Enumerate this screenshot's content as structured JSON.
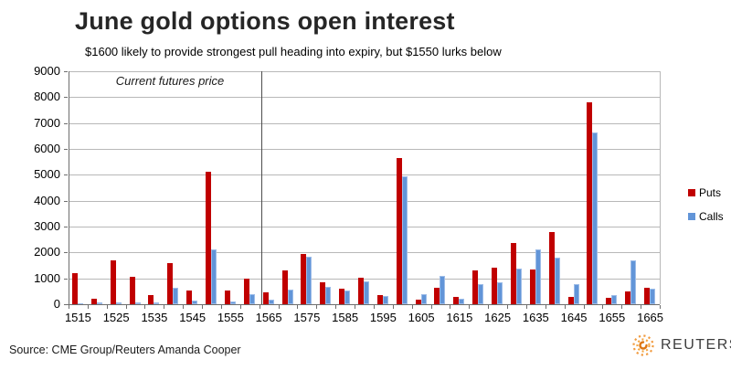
{
  "title": "June gold options open interest",
  "subtitle": "$1600 likely to provide strongest pull heading into expiry, but $1550 lurks below",
  "annotation": "Current futures price",
  "source": "Source: CME Group/Reuters Amanda Cooper",
  "logo": {
    "text": "REUTERS",
    "icon": "reuters-sunburst-icon",
    "icon_color": "#EE8A1F"
  },
  "legend": [
    {
      "label": "Puts",
      "color": "#C00000"
    },
    {
      "label": "Calls",
      "color": "#6295D8"
    }
  ],
  "colors": {
    "puts": "#C00000",
    "calls": "#6295D8",
    "calls_border": "#9DBCE8",
    "gridline": "#B8B8B8",
    "axis": "#6E6E6E",
    "futures_line": "#4D4D4D"
  },
  "chart_data": {
    "type": "bar",
    "title": "June gold options open interest",
    "subtitle": "$1600 likely to provide strongest pull heading into expiry, but $1550 lurks below",
    "xlabel": "",
    "ylabel": "",
    "categories": [
      1515,
      1520,
      1525,
      1530,
      1535,
      1540,
      1545,
      1550,
      1555,
      1560,
      1565,
      1570,
      1575,
      1580,
      1585,
      1590,
      1595,
      1600,
      1605,
      1610,
      1615,
      1620,
      1625,
      1630,
      1635,
      1640,
      1645,
      1650,
      1655,
      1660,
      1665
    ],
    "x_tick_labels": [
      "1515",
      "1525",
      "1535",
      "1545",
      "1555",
      "1565",
      "1575",
      "1585",
      "1595",
      "1605",
      "1615",
      "1625",
      "1635",
      "1645",
      "1655",
      "1665"
    ],
    "series": [
      {
        "name": "Puts",
        "color": "#C00000",
        "values": [
          1200,
          200,
          1700,
          1050,
          350,
          1600,
          530,
          5100,
          530,
          1000,
          450,
          1300,
          1950,
          860,
          610,
          1040,
          350,
          5650,
          160,
          640,
          270,
          1320,
          1400,
          2380,
          1340,
          2780,
          290,
          7800,
          230,
          490,
          640
        ]
      },
      {
        "name": "Calls",
        "color": "#6295D8",
        "values": [
          50,
          60,
          80,
          70,
          60,
          620,
          140,
          2100,
          110,
          400,
          180,
          550,
          1850,
          680,
          530,
          880,
          300,
          4950,
          380,
          1080,
          200,
          760,
          840,
          1370,
          2120,
          1800,
          780,
          6650,
          370,
          1700,
          600
        ]
      }
    ],
    "ylim": [
      0,
      9000
    ],
    "ytick_step": 1000,
    "grid": true,
    "legend_position": "right",
    "futures_line_between": [
      "1560",
      "1565"
    ]
  }
}
